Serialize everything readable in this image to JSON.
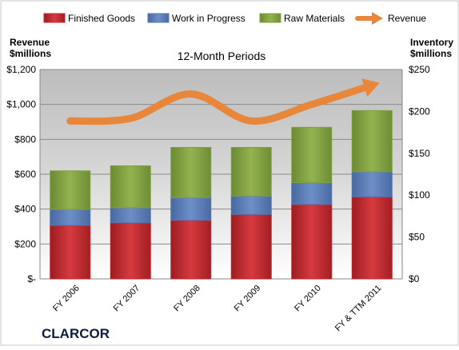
{
  "company_label": "CLARCOR",
  "colors": {
    "finished_goods": "#c0282d",
    "work_in_progress": "#5577b0",
    "raw_materials": "#80a040",
    "revenue": "#e8873a"
  },
  "chart_data": {
    "type": "bar",
    "stacked": true,
    "title": "12-Month Periods",
    "categories": [
      "FY 2006",
      "FY 2007",
      "FY 2008",
      "FY 2009",
      "FY 2010",
      "FY & TTM 2011"
    ],
    "series": [
      {
        "name": "Finished Goods",
        "axis": "right",
        "values": [
          64,
          67,
          70,
          77,
          89,
          98
        ]
      },
      {
        "name": "Work in Progress",
        "axis": "right",
        "values": [
          19,
          18,
          27,
          22,
          26,
          30
        ]
      },
      {
        "name": "Raw Materials",
        "axis": "right",
        "values": [
          46,
          50,
          60,
          58,
          66,
          73
        ]
      }
    ],
    "line_series": {
      "name": "Revenue",
      "axis": "left",
      "values": [
        905,
        920,
        1060,
        905,
        1000,
        1110
      ]
    },
    "ylabel_left": "Revenue\n$millions",
    "ylabel_right": "Inventory\n$millions",
    "ylim_left": [
      0,
      1200
    ],
    "ylim_right": [
      0,
      250
    ],
    "left_ticks": [
      "$-",
      "$200",
      "$400",
      "$600",
      "$800",
      "$1,000",
      "$1,200"
    ],
    "right_ticks": [
      "$0",
      "$50",
      "$100",
      "$150",
      "$200",
      "$250"
    ],
    "legend_position": "top",
    "grid": true
  }
}
